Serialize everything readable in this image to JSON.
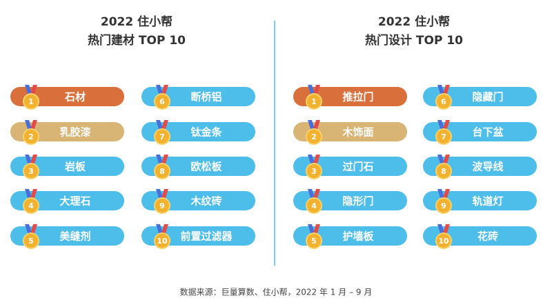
{
  "panels": [
    {
      "title_line1": "2022 住小帮",
      "title_line2": "热门建材 TOP 10",
      "items": [
        {
          "rank": 1,
          "label": "石材"
        },
        {
          "rank": 2,
          "label": "乳胶漆"
        },
        {
          "rank": 3,
          "label": "岩板"
        },
        {
          "rank": 4,
          "label": "大理石"
        },
        {
          "rank": 5,
          "label": "美缝剂"
        },
        {
          "rank": 6,
          "label": "断桥铝"
        },
        {
          "rank": 7,
          "label": "钛金条"
        },
        {
          "rank": 8,
          "label": "欧松板"
        },
        {
          "rank": 9,
          "label": "木纹砖"
        },
        {
          "rank": 10,
          "label": "前置过滤器"
        }
      ]
    },
    {
      "title_line1": "2022 住小帮",
      "title_line2": "热门设计 TOP 10",
      "items": [
        {
          "rank": 1,
          "label": "推拉门"
        },
        {
          "rank": 2,
          "label": "木饰面"
        },
        {
          "rank": 3,
          "label": "过门石"
        },
        {
          "rank": 4,
          "label": "隐形门"
        },
        {
          "rank": 5,
          "label": "护墙板"
        },
        {
          "rank": 6,
          "label": "隐藏门"
        },
        {
          "rank": 7,
          "label": "台下盆"
        },
        {
          "rank": 8,
          "label": "波导线"
        },
        {
          "rank": 9,
          "label": "轨道灯"
        },
        {
          "rank": 10,
          "label": "花砖"
        }
      ]
    }
  ],
  "source": "数据来源：巨量算数、住小帮，2022 年 1 月 – 9 月"
}
